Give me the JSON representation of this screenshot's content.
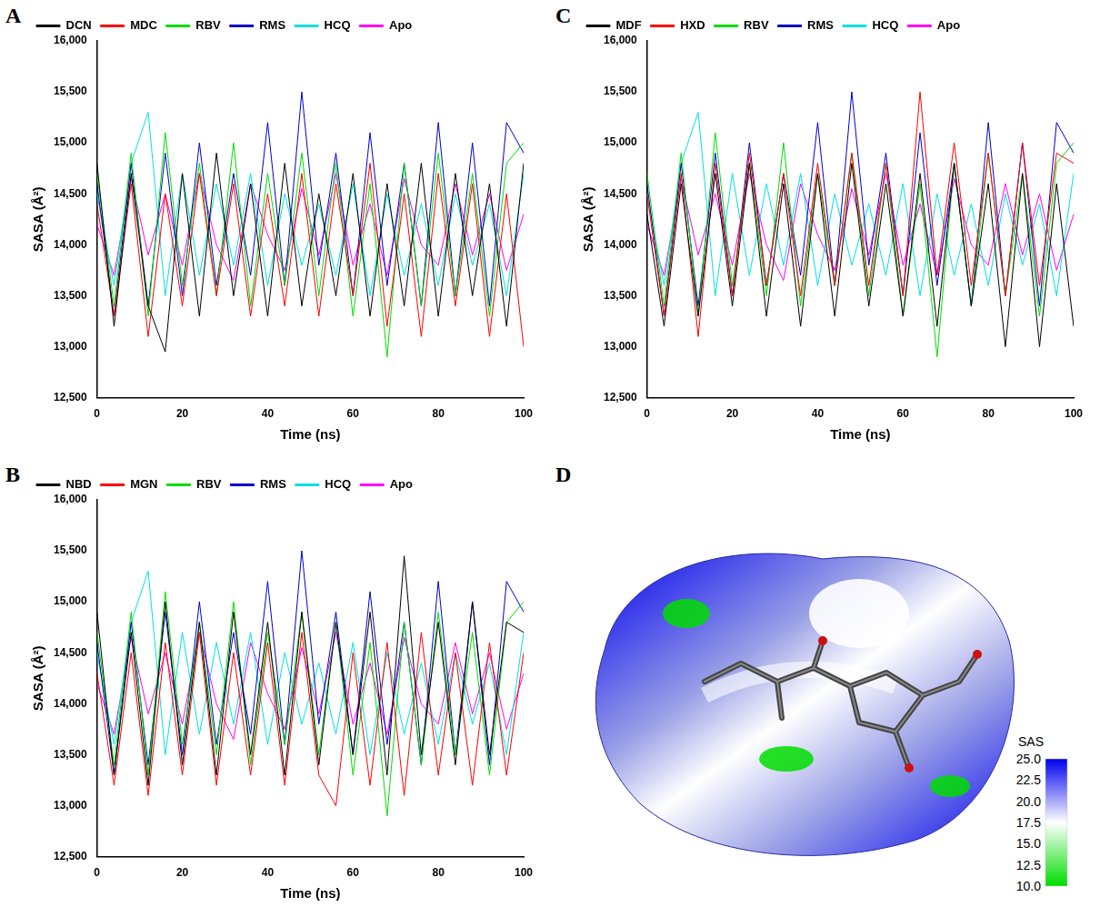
{
  "chart_data": [
    {
      "type": "line",
      "label": "A",
      "x_label": "Time (ns)",
      "y_label": "SASA (Å²)",
      "x": [
        0,
        4,
        8,
        12,
        16,
        20,
        24,
        28,
        32,
        36,
        40,
        44,
        48,
        52,
        56,
        60,
        64,
        68,
        72,
        76,
        80,
        84,
        88,
        92,
        96,
        100
      ],
      "xlim": [
        0,
        100
      ],
      "xticks": [
        0,
        20,
        40,
        60,
        80,
        100
      ],
      "ylim": [
        12500,
        16000
      ],
      "yticks": [
        12500,
        13000,
        13500,
        14000,
        14500,
        15000,
        15500,
        16000
      ],
      "grid": false,
      "legend": "top",
      "series": [
        {
          "name": "DCN",
          "color": "#000000",
          "values": [
            14800,
            13200,
            14700,
            13400,
            12950,
            14700,
            13300,
            14900,
            13500,
            14600,
            13300,
            14800,
            13400,
            14500,
            13500,
            14700,
            13300,
            14600,
            13400,
            14800,
            13300,
            14700,
            13500,
            14600,
            13200,
            14800
          ]
        },
        {
          "name": "MDC",
          "color": "#ff0000",
          "values": [
            14400,
            13300,
            14600,
            13100,
            14500,
            13400,
            14700,
            13500,
            14600,
            13300,
            14500,
            13400,
            14700,
            13300,
            14600,
            13500,
            14800,
            13200,
            14500,
            13100,
            14700,
            13400,
            14600,
            13100,
            14500,
            13000
          ]
        },
        {
          "name": "RBV",
          "color": "#00dd00",
          "values": [
            14700,
            13400,
            14900,
            13300,
            15100,
            13600,
            14800,
            13500,
            15000,
            13400,
            14700,
            13600,
            14900,
            13500,
            14800,
            13300,
            14600,
            12900,
            14800,
            13400,
            14900,
            13500,
            14700,
            13300,
            14800,
            15000
          ]
        },
        {
          "name": "RMS",
          "color": "#0000cc",
          "values": [
            14600,
            13300,
            14800,
            13400,
            14900,
            13500,
            15000,
            13600,
            14700,
            13700,
            15200,
            13600,
            15500,
            13800,
            14900,
            13500,
            15100,
            13600,
            14800,
            13400,
            15200,
            13500,
            15000,
            13400,
            15200,
            14900
          ]
        },
        {
          "name": "HCQ",
          "color": "#00e0e0",
          "values": [
            14500,
            13600,
            14800,
            15300,
            13500,
            14700,
            13700,
            14600,
            13800,
            14700,
            13600,
            14500,
            13800,
            14400,
            13700,
            14600,
            13500,
            14500,
            13700,
            14400,
            13600,
            14500,
            13800,
            14400,
            13500,
            14700
          ]
        },
        {
          "name": "Apo",
          "color": "#ff00ff",
          "values": [
            14200,
            13700,
            14650,
            13900,
            14500,
            13800,
            14700,
            14000,
            13650,
            14600,
            14100,
            13750,
            14550,
            13900,
            14700,
            13800,
            14400,
            13700,
            14650,
            14000,
            13800,
            14600,
            13900,
            14500,
            13750,
            14300
          ]
        }
      ]
    },
    {
      "type": "line",
      "label": "C",
      "x_label": "Time (ns)",
      "y_label": "SASA (Å²)",
      "x": [
        0,
        4,
        8,
        12,
        16,
        20,
        24,
        28,
        32,
        36,
        40,
        44,
        48,
        52,
        56,
        60,
        64,
        68,
        72,
        76,
        80,
        84,
        88,
        92,
        96,
        100
      ],
      "xlim": [
        0,
        100
      ],
      "xticks": [
        0,
        20,
        40,
        60,
        80,
        100
      ],
      "ylim": [
        12500,
        16000
      ],
      "yticks": [
        12500,
        13000,
        13500,
        14000,
        14500,
        15000,
        15500,
        16000
      ],
      "grid": false,
      "legend": "top",
      "series": [
        {
          "name": "MDF",
          "color": "#000000",
          "values": [
            14300,
            13200,
            14600,
            13300,
            14700,
            13400,
            14800,
            13300,
            14600,
            13200,
            14700,
            13300,
            14800,
            13400,
            14600,
            13300,
            14700,
            13200,
            14800,
            13400,
            14600,
            13000,
            14700,
            13000,
            14600,
            13200
          ]
        },
        {
          "name": "HXD",
          "color": "#ff0000",
          "values": [
            14500,
            13300,
            14700,
            13100,
            14800,
            13500,
            14900,
            13600,
            14700,
            13500,
            14800,
            13600,
            14900,
            13600,
            14800,
            13500,
            15500,
            13700,
            15000,
            13600,
            14900,
            13500,
            15000,
            13600,
            14900,
            14800
          ]
        },
        {
          "name": "RBV",
          "color": "#00dd00",
          "values": [
            14700,
            13400,
            14900,
            13300,
            15100,
            13600,
            14800,
            13500,
            15000,
            13400,
            14700,
            13600,
            14900,
            13500,
            14800,
            13300,
            14600,
            12900,
            14800,
            13400,
            14900,
            13500,
            14700,
            13300,
            14800,
            15000
          ]
        },
        {
          "name": "RMS",
          "color": "#0000cc",
          "values": [
            14600,
            13300,
            14800,
            13400,
            14900,
            13500,
            15000,
            13600,
            14700,
            13700,
            15200,
            13600,
            15500,
            13800,
            14900,
            13500,
            15100,
            13600,
            14800,
            13400,
            15200,
            13500,
            15000,
            13400,
            15200,
            14900
          ]
        },
        {
          "name": "HCQ",
          "color": "#00e0e0",
          "values": [
            14500,
            13600,
            14800,
            15300,
            13500,
            14700,
            13700,
            14600,
            13800,
            14700,
            13600,
            14500,
            13800,
            14400,
            13700,
            14600,
            13500,
            14500,
            13700,
            14400,
            13600,
            14500,
            13800,
            14400,
            13500,
            14700
          ]
        },
        {
          "name": "Apo",
          "color": "#ff00ff",
          "values": [
            14200,
            13700,
            14650,
            13900,
            14500,
            13800,
            14700,
            14000,
            13650,
            14600,
            14100,
            13750,
            14550,
            13900,
            14700,
            13800,
            14400,
            13700,
            14650,
            14000,
            13800,
            14600,
            13900,
            14500,
            13750,
            14300
          ]
        }
      ]
    },
    {
      "type": "line",
      "label": "B",
      "x_label": "Time (ns)",
      "y_label": "SASA (Å²)",
      "x": [
        0,
        4,
        8,
        12,
        16,
        20,
        24,
        28,
        32,
        36,
        40,
        44,
        48,
        52,
        56,
        60,
        64,
        68,
        72,
        76,
        80,
        84,
        88,
        92,
        96,
        100
      ],
      "xlim": [
        0,
        100
      ],
      "xticks": [
        0,
        20,
        40,
        60,
        80,
        100
      ],
      "ylim": [
        12500,
        16000
      ],
      "yticks": [
        12500,
        13000,
        13500,
        14000,
        14500,
        15000,
        15500,
        16000
      ],
      "grid": false,
      "legend": "top",
      "series": [
        {
          "name": "NBD",
          "color": "#000000",
          "values": [
            14900,
            13300,
            14700,
            13200,
            15000,
            13400,
            14800,
            13300,
            14900,
            13500,
            14800,
            13300,
            14900,
            13400,
            14800,
            13500,
            14900,
            13300,
            15450,
            13500,
            14800,
            13400,
            15000,
            13500,
            14800,
            14700
          ]
        },
        {
          "name": "MGN",
          "color": "#ff0000",
          "values": [
            14300,
            13200,
            14500,
            13100,
            14600,
            13300,
            14700,
            13200,
            14500,
            13300,
            14600,
            13200,
            14700,
            13300,
            13000,
            14500,
            13200,
            14600,
            13100,
            14700,
            13300,
            14500,
            13200,
            14600,
            13300,
            14500
          ]
        },
        {
          "name": "RBV",
          "color": "#00dd00",
          "values": [
            14700,
            13400,
            14900,
            13300,
            15100,
            13600,
            14800,
            13500,
            15000,
            13400,
            14700,
            13600,
            14900,
            13500,
            14800,
            13300,
            14600,
            12900,
            14800,
            13400,
            14900,
            13500,
            14700,
            13300,
            14800,
            15000
          ]
        },
        {
          "name": "RMS",
          "color": "#0000cc",
          "values": [
            14600,
            13300,
            14800,
            13400,
            14900,
            13500,
            15000,
            13600,
            14700,
            13700,
            15200,
            13600,
            15500,
            13800,
            14900,
            13500,
            15100,
            13600,
            14800,
            13400,
            15200,
            13500,
            15000,
            13400,
            15200,
            14900
          ]
        },
        {
          "name": "HCQ",
          "color": "#00e0e0",
          "values": [
            14500,
            13600,
            14800,
            15300,
            13500,
            14700,
            13700,
            14600,
            13800,
            14700,
            13600,
            14500,
            13800,
            14400,
            13700,
            14600,
            13500,
            14500,
            13700,
            14400,
            13600,
            14500,
            13800,
            14400,
            13500,
            14700
          ]
        },
        {
          "name": "Apo",
          "color": "#ff00ff",
          "values": [
            14200,
            13700,
            14650,
            13900,
            14500,
            13800,
            14700,
            14000,
            13650,
            14600,
            14100,
            13750,
            14550,
            13900,
            14700,
            13800,
            14400,
            13700,
            14650,
            14000,
            13800,
            14600,
            13900,
            14500,
            13750,
            14300
          ]
        }
      ]
    }
  ],
  "panel_d": {
    "label": "D",
    "colorbar": {
      "title": "SAS",
      "range": [
        10,
        25
      ],
      "colors": [
        "#00dd00",
        "#ffffff",
        "#0000ee"
      ],
      "ticks": [
        {
          "value": 25,
          "label": "25.0"
        },
        22.5,
        {
          "value": 20,
          "label": "20.0"
        },
        17.5,
        {
          "value": 15,
          "label": "15.0"
        },
        12.5,
        {
          "value": 10,
          "label": "10.0"
        }
      ]
    }
  }
}
